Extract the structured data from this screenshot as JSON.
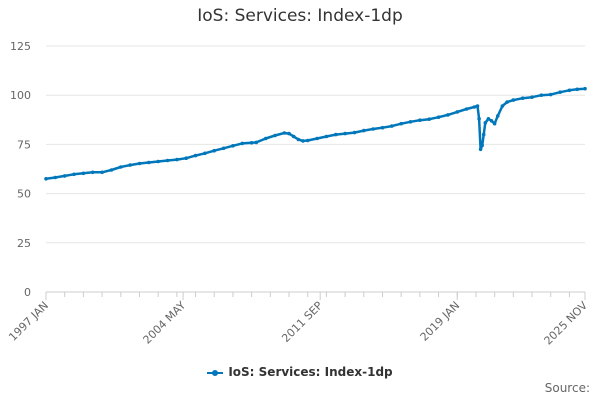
{
  "chart_data": {
    "type": "line",
    "title": "IoS: Services: Index-1dp",
    "xlabel": "",
    "ylabel": "",
    "ylim": [
      0,
      125
    ],
    "yticks": [
      "0",
      "25",
      "50",
      "75",
      "100",
      "125"
    ],
    "xticks": [
      {
        "label": "1997 JAN",
        "date": "1997-01"
      },
      {
        "label": "2004 MAY",
        "date": "2004-05"
      },
      {
        "label": "2011 SEP",
        "date": "2011-09"
      },
      {
        "label": "2019 JAN",
        "date": "2019-01"
      },
      {
        "label": "2025 NOV",
        "date": "2025-11"
      }
    ],
    "xlim": [
      "1997-01",
      "2025-11"
    ],
    "grid": true,
    "legend": "bottom-center",
    "color": "#0077bb",
    "series": [
      {
        "name": "IoS: Services: Index-1dp",
        "points": [
          [
            "1997-01",
            57.5
          ],
          [
            "1997-07",
            58.2
          ],
          [
            "1998-01",
            59.0
          ],
          [
            "1998-07",
            59.8
          ],
          [
            "1999-01",
            60.3
          ],
          [
            "1999-07",
            60.8
          ],
          [
            "2000-01",
            60.8
          ],
          [
            "2000-07",
            62.0
          ],
          [
            "2001-01",
            63.5
          ],
          [
            "2001-07",
            64.5
          ],
          [
            "2002-01",
            65.3
          ],
          [
            "2002-07",
            65.8
          ],
          [
            "2003-01",
            66.3
          ],
          [
            "2003-07",
            66.8
          ],
          [
            "2004-01",
            67.3
          ],
          [
            "2004-07",
            68.0
          ],
          [
            "2005-01",
            69.3
          ],
          [
            "2005-07",
            70.5
          ],
          [
            "2006-01",
            71.8
          ],
          [
            "2006-07",
            73.0
          ],
          [
            "2007-01",
            74.3
          ],
          [
            "2007-07",
            75.5
          ],
          [
            "2008-01",
            75.8
          ],
          [
            "2008-04",
            76.0
          ],
          [
            "2008-10",
            78.0
          ],
          [
            "2009-04",
            79.5
          ],
          [
            "2009-10",
            80.8
          ],
          [
            "2010-01",
            80.5
          ],
          [
            "2010-04",
            79.0
          ],
          [
            "2010-07",
            77.5
          ],
          [
            "2010-10",
            76.8
          ],
          [
            "2011-01",
            77.0
          ],
          [
            "2011-07",
            78.0
          ],
          [
            "2012-01",
            79.0
          ],
          [
            "2012-07",
            80.0
          ],
          [
            "2013-01",
            80.5
          ],
          [
            "2013-07",
            81.0
          ],
          [
            "2014-01",
            82.0
          ],
          [
            "2014-07",
            82.8
          ],
          [
            "2015-01",
            83.5
          ],
          [
            "2015-07",
            84.3
          ],
          [
            "2016-01",
            85.5
          ],
          [
            "2016-07",
            86.5
          ],
          [
            "2017-01",
            87.3
          ],
          [
            "2017-07",
            87.8
          ],
          [
            "2018-01",
            88.8
          ],
          [
            "2018-07",
            90.0
          ],
          [
            "2019-01",
            91.5
          ],
          [
            "2019-07",
            93.0
          ],
          [
            "2019-12",
            94.0
          ],
          [
            "2020-02",
            94.5
          ],
          [
            "2020-03",
            88.0
          ],
          [
            "2020-04",
            72.5
          ],
          [
            "2020-05",
            74.5
          ],
          [
            "2020-06",
            80.0
          ],
          [
            "2020-07",
            86.0
          ],
          [
            "2020-09",
            88.0
          ],
          [
            "2020-11",
            87.0
          ],
          [
            "2021-01",
            85.5
          ],
          [
            "2021-03",
            89.5
          ],
          [
            "2021-06",
            94.5
          ],
          [
            "2021-09",
            96.5
          ],
          [
            "2022-01",
            97.5
          ],
          [
            "2022-07",
            98.5
          ],
          [
            "2023-01",
            99.0
          ],
          [
            "2023-07",
            100.0
          ],
          [
            "2024-01",
            100.3
          ],
          [
            "2024-07",
            101.5
          ],
          [
            "2025-01",
            102.5
          ],
          [
            "2025-06",
            103.0
          ],
          [
            "2025-11",
            103.3
          ]
        ]
      }
    ]
  },
  "source_label": "Source:"
}
